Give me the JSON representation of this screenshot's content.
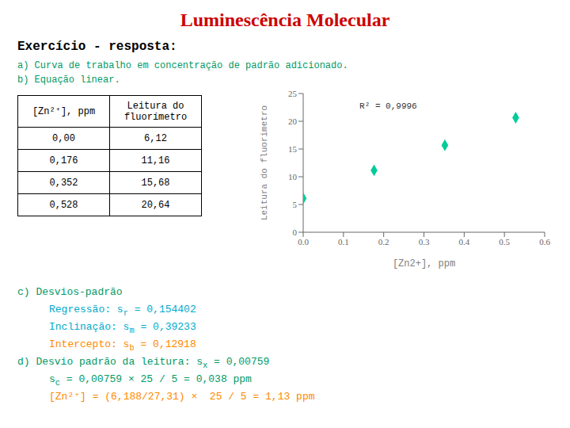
{
  "chart_data": {
    "type": "scatter",
    "title": "Luminescência Molecular",
    "title_color": "#cc0000",
    "subtitle": "Exercício - resposta:",
    "subtitle_color": "#000000",
    "background_color": "#ffffff",
    "notes": [
      {
        "text": "a) Curva de trabalho em concentração de padrão adicionado.",
        "color": "#009966"
      },
      {
        "text": "b) Equação linear.",
        "color": "#009966"
      }
    ],
    "table": {
      "columns": [
        "[Zn²⁺], ppm",
        "Leitura do\nfluorímetro"
      ],
      "rows": [
        [
          "0,00",
          "6,12"
        ],
        [
          "0,176",
          "11,16"
        ],
        [
          "0,352",
          "15,68"
        ],
        [
          "0,528",
          "20,64"
        ]
      ]
    },
    "x": [
      0.0,
      0.176,
      0.352,
      0.528
    ],
    "values": [
      6.12,
      11.16,
      15.68,
      20.64
    ],
    "color": "#00cc99",
    "marker": "diamond",
    "xlabel": "[Zn2+], ppm",
    "ylabel": "Leitura do fluorimetro",
    "xlim": [
      0,
      0.6
    ],
    "ylim": [
      0,
      25
    ],
    "xticks": [
      {
        "value": 0,
        "label": "0.0"
      },
      0.1,
      0.2,
      0.3,
      0.4,
      0.5,
      0.6
    ],
    "yticks": [
      0,
      5,
      10,
      15,
      20,
      25
    ],
    "grid": false,
    "annotations": [
      {
        "text": "R² = 0,9996",
        "x": 0.13,
        "y": 22.8
      }
    ],
    "sections": [
      {
        "heading": {
          "parts": [
            {
              "text": "c) Desvios-padrão"
            }
          ],
          "color": "#009966"
        },
        "items": [
          {
            "parts": [
              {
                "text": "Regressão: s"
              },
              {
                "text": "r",
                "sub": true
              },
              {
                "text": " = 0,154402"
              }
            ],
            "color": "#00aacc"
          },
          {
            "parts": [
              {
                "text": "Inclinação: s"
              },
              {
                "text": "m",
                "sub": true
              },
              {
                "text": " = 0,39233"
              }
            ],
            "color": "#00aacc"
          },
          {
            "parts": [
              {
                "text": "Intercepto: s"
              },
              {
                "text": "b",
                "sub": true
              },
              {
                "text": " = 0,12918"
              }
            ],
            "color": "#ff8800"
          }
        ]
      },
      {
        "heading": {
          "parts": [
            {
              "text": "d) Desvio padrão da leitura: s"
            },
            {
              "text": "x",
              "sub": true
            },
            {
              "text": " = 0,00759"
            }
          ],
          "color": "#009966"
        },
        "items": [
          {
            "parts": [
              {
                "text": "s"
              },
              {
                "text": "c",
                "sub": true
              },
              {
                "text": " = 0,00759 × 25 / 5 = 0,038 ppm"
              }
            ],
            "color": "#009966"
          },
          {
            "parts": [
              {
                "text": "[Zn²⁺] = (6,188/27,31) ×  25 / 5 = 1,13 ppm"
              }
            ],
            "color": "#ff8800"
          }
        ]
      }
    ]
  }
}
